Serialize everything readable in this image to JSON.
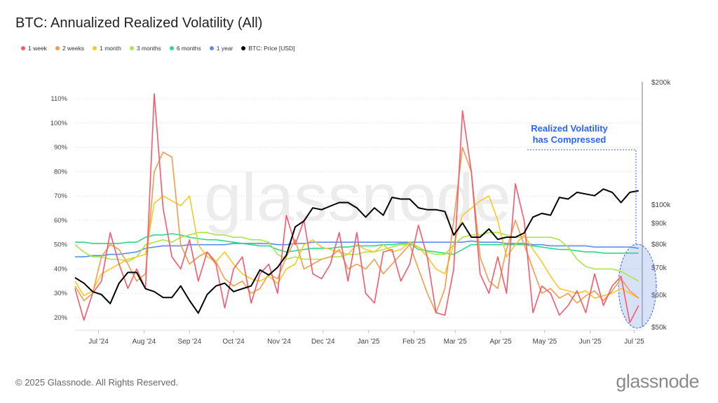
{
  "title": "BTC: Annualized Realized Volatility (All)",
  "footer": "© 2025 Glassnode. All Rights Reserved.",
  "logo": "glassnode",
  "watermark": "glassnode",
  "chart_data": {
    "type": "line",
    "title": "BTC: Annualized Realized Volatility (All)",
    "x_start_date": "2024-06-15",
    "x_step_days": 6,
    "x_ticks": [
      {
        "label": "Jul '24",
        "day": 16
      },
      {
        "label": "Aug '24",
        "day": 47
      },
      {
        "label": "Sep '24",
        "day": 78
      },
      {
        "label": "Oct '24",
        "day": 108
      },
      {
        "label": "Nov '24",
        "day": 139
      },
      {
        "label": "Dec '24",
        "day": 169
      },
      {
        "label": "Jan '25",
        "day": 200
      },
      {
        "label": "Feb '25",
        "day": 231
      },
      {
        "label": "Mar '25",
        "day": 259
      },
      {
        "label": "Apr '25",
        "day": 290
      },
      {
        "label": "May '25",
        "day": 320
      },
      {
        "label": "Jun '25",
        "day": 351
      },
      {
        "label": "Jul '25",
        "day": 381
      }
    ],
    "x_range_days": [
      0,
      386
    ],
    "y_left": {
      "ylim": [
        17,
        117
      ],
      "ticks": [
        20,
        30,
        40,
        50,
        60,
        70,
        80,
        90,
        100,
        110
      ],
      "tick_labels": [
        "20%",
        "30%",
        "40%",
        "50%",
        "60%",
        "70%",
        "80%",
        "90%",
        "100%",
        "110%"
      ]
    },
    "y_right": {
      "scale": "log",
      "ylim": [
        50000,
        200000
      ],
      "ticks": [
        50000,
        60000,
        70000,
        80000,
        90000,
        100000,
        200000
      ],
      "tick_labels": [
        "$50k",
        "$60k",
        "$70k",
        "$80k",
        "$90k",
        "$100k",
        "$200k"
      ]
    },
    "grid": true,
    "legend_position": "top-left",
    "series": [
      {
        "name": "1 week",
        "color": "#f7596b",
        "axis": "left",
        "values": [
          32,
          19,
          30,
          35,
          55,
          42,
          32,
          40,
          32,
          112,
          65,
          45,
          40,
          52,
          35,
          47,
          42,
          24,
          40,
          45,
          26,
          38,
          42,
          30,
          62,
          50,
          60,
          38,
          36,
          42,
          55,
          35,
          55,
          30,
          26,
          47,
          48,
          35,
          42,
          58,
          45,
          22,
          21,
          40,
          105,
          80,
          38,
          30,
          45,
          30,
          75,
          60,
          22,
          33,
          30,
          21,
          25,
          31,
          22,
          38,
          25,
          33,
          37,
          18,
          25
        ]
      },
      {
        "name": "2 weeks",
        "color": "#f79a4a",
        "axis": "left",
        "values": [
          33,
          27,
          30,
          45,
          50,
          48,
          42,
          35,
          38,
          80,
          88,
          86,
          50,
          42,
          45,
          47,
          43,
          36,
          33,
          35,
          30,
          32,
          38,
          36,
          45,
          52,
          40,
          42,
          44,
          45,
          48,
          40,
          42,
          40,
          44,
          38,
          42,
          46,
          50,
          40,
          30,
          22,
          32,
          60,
          90,
          80,
          45,
          35,
          32,
          48,
          60,
          50,
          40,
          30,
          32,
          28,
          30,
          26,
          29,
          31,
          27,
          31,
          36,
          31,
          28
        ]
      },
      {
        "name": "1 month",
        "color": "#f9c823",
        "axis": "left",
        "values": [
          35,
          29,
          31,
          38,
          40,
          42,
          44,
          45,
          46,
          67,
          70,
          68,
          66,
          70,
          50,
          45,
          43,
          47,
          42,
          38,
          36,
          35,
          37,
          34,
          40,
          42,
          50,
          52,
          49,
          48,
          47,
          46,
          50,
          48,
          47,
          50,
          47,
          48,
          51,
          49,
          45,
          40,
          38,
          50,
          62,
          65,
          68,
          70,
          60,
          45,
          50,
          54,
          48,
          43,
          37,
          32,
          31,
          30,
          31,
          28,
          29,
          30,
          32,
          30,
          28
        ]
      },
      {
        "name": "3 months",
        "color": "#a6e84a",
        "axis": "left",
        "values": [
          50,
          47,
          45,
          45,
          44,
          44,
          43,
          45,
          50,
          51,
          52,
          51,
          53,
          54,
          55,
          55,
          54,
          54,
          53,
          53,
          52,
          52,
          51,
          46,
          44,
          45,
          44,
          44,
          44,
          45,
          45,
          46,
          46,
          47,
          47,
          48,
          49,
          50,
          50,
          49,
          47,
          46,
          46,
          50,
          53,
          54,
          54,
          55,
          55,
          54,
          53,
          53,
          53,
          53,
          53,
          52,
          49,
          44,
          41,
          40,
          40,
          40,
          39,
          37,
          35
        ]
      },
      {
        "name": "6 months",
        "color": "#2ed889",
        "axis": "left",
        "values": [
          51,
          51,
          50.5,
          50.5,
          50.5,
          50.5,
          51,
          51,
          53,
          54,
          54,
          54.5,
          54,
          53,
          52.5,
          52,
          52,
          51.5,
          51,
          50.5,
          50,
          49.5,
          49.5,
          48,
          47,
          47.5,
          48,
          48.5,
          48.5,
          48.5,
          49,
          49,
          49.5,
          49.5,
          49.5,
          50,
          50,
          50.5,
          50.5,
          48,
          47.5,
          47,
          46.5,
          46,
          48,
          50,
          50,
          50,
          50,
          50,
          50,
          50,
          49.5,
          49,
          48.5,
          48,
          48,
          47.5,
          47,
          47,
          46.5,
          46.5,
          46.5,
          46.5,
          46.5
        ]
      },
      {
        "name": "1 year",
        "color": "#5b8def",
        "axis": "left",
        "values": [
          45,
          45,
          45.5,
          45.5,
          46,
          46,
          46.5,
          47,
          48.5,
          49,
          49.5,
          49.5,
          49.5,
          50,
          50,
          50,
          50,
          50,
          50.5,
          50.5,
          50.5,
          50.5,
          50.5,
          50,
          50,
          50.5,
          50.5,
          51,
          51,
          51,
          51,
          51,
          51,
          51,
          51,
          51,
          51,
          51,
          51,
          51,
          51,
          51,
          51,
          51,
          51,
          51.5,
          51,
          51,
          51,
          50.5,
          50.5,
          50.5,
          50,
          50,
          49.5,
          49.5,
          49.5,
          49.5,
          49.5,
          49,
          49,
          49,
          49,
          49,
          48.5
        ]
      },
      {
        "name": "BTC: Price [USD]",
        "color": "#000000",
        "axis": "right",
        "values": [
          66000,
          64000,
          61000,
          60000,
          57000,
          64000,
          68000,
          68000,
          62000,
          61000,
          59000,
          59000,
          63000,
          58000,
          54000,
          60000,
          63000,
          64000,
          61000,
          62000,
          63000,
          69000,
          67000,
          70000,
          75000,
          88000,
          91000,
          98000,
          97000,
          99000,
          101000,
          101000,
          98000,
          93000,
          98000,
          94000,
          104000,
          103000,
          103000,
          98000,
          97000,
          97000,
          96000,
          84000,
          90000,
          83000,
          83000,
          87000,
          82000,
          83000,
          83000,
          85000,
          93000,
          95000,
          94000,
          104000,
          103000,
          107000,
          106000,
          105000,
          109000,
          107000,
          101000,
          107000,
          108000
        ]
      }
    ],
    "annotation": {
      "line1": "Realized Volatility",
      "line2": "has Compressed",
      "color": "#2962ff"
    }
  }
}
